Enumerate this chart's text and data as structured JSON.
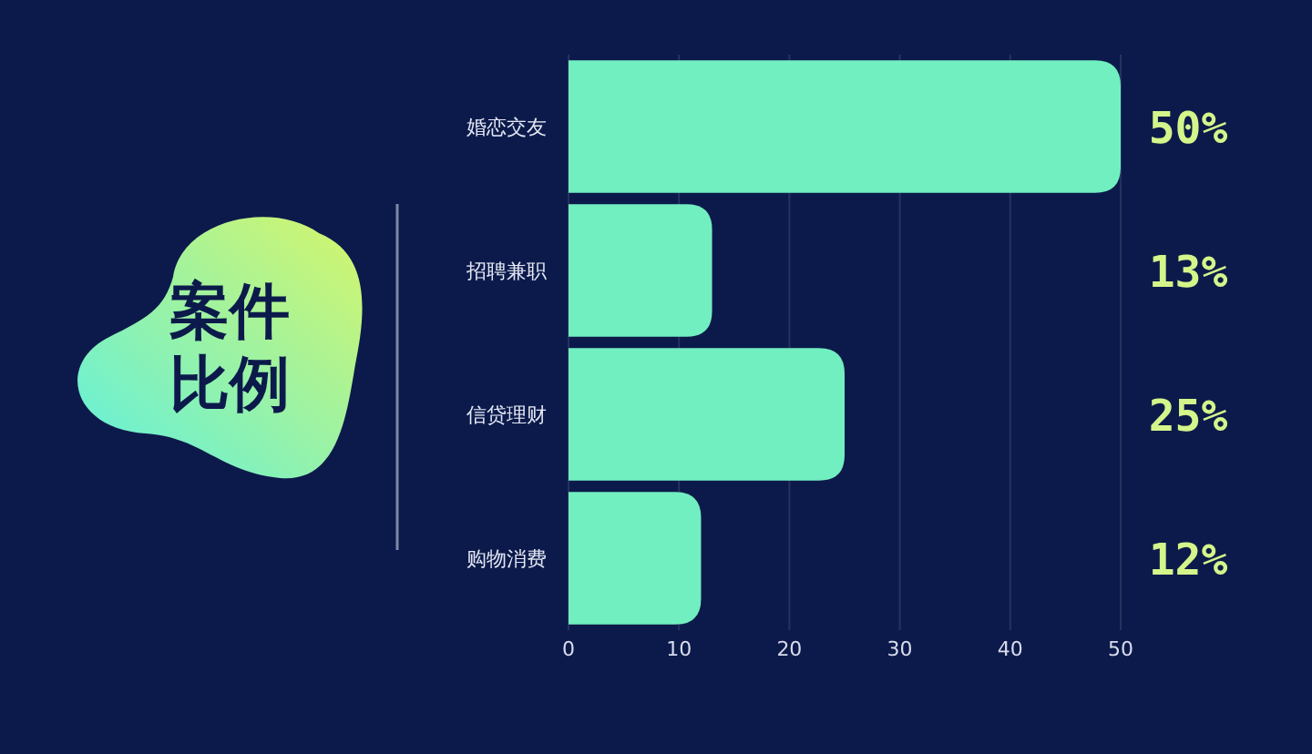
{
  "chart_data": {
    "type": "bar",
    "orientation": "horizontal",
    "title": "案件比例",
    "categories": [
      "婚恋交友",
      "招聘兼职",
      "信贷理财",
      "购物消费"
    ],
    "values": [
      50,
      13,
      25,
      12
    ],
    "value_labels": [
      "50%",
      "13%",
      "25%",
      "12%"
    ],
    "color": "#72efc0",
    "xlim": [
      0,
      50
    ],
    "xticks": [
      0,
      10,
      20,
      30,
      40,
      50
    ],
    "grid": "x"
  }
}
